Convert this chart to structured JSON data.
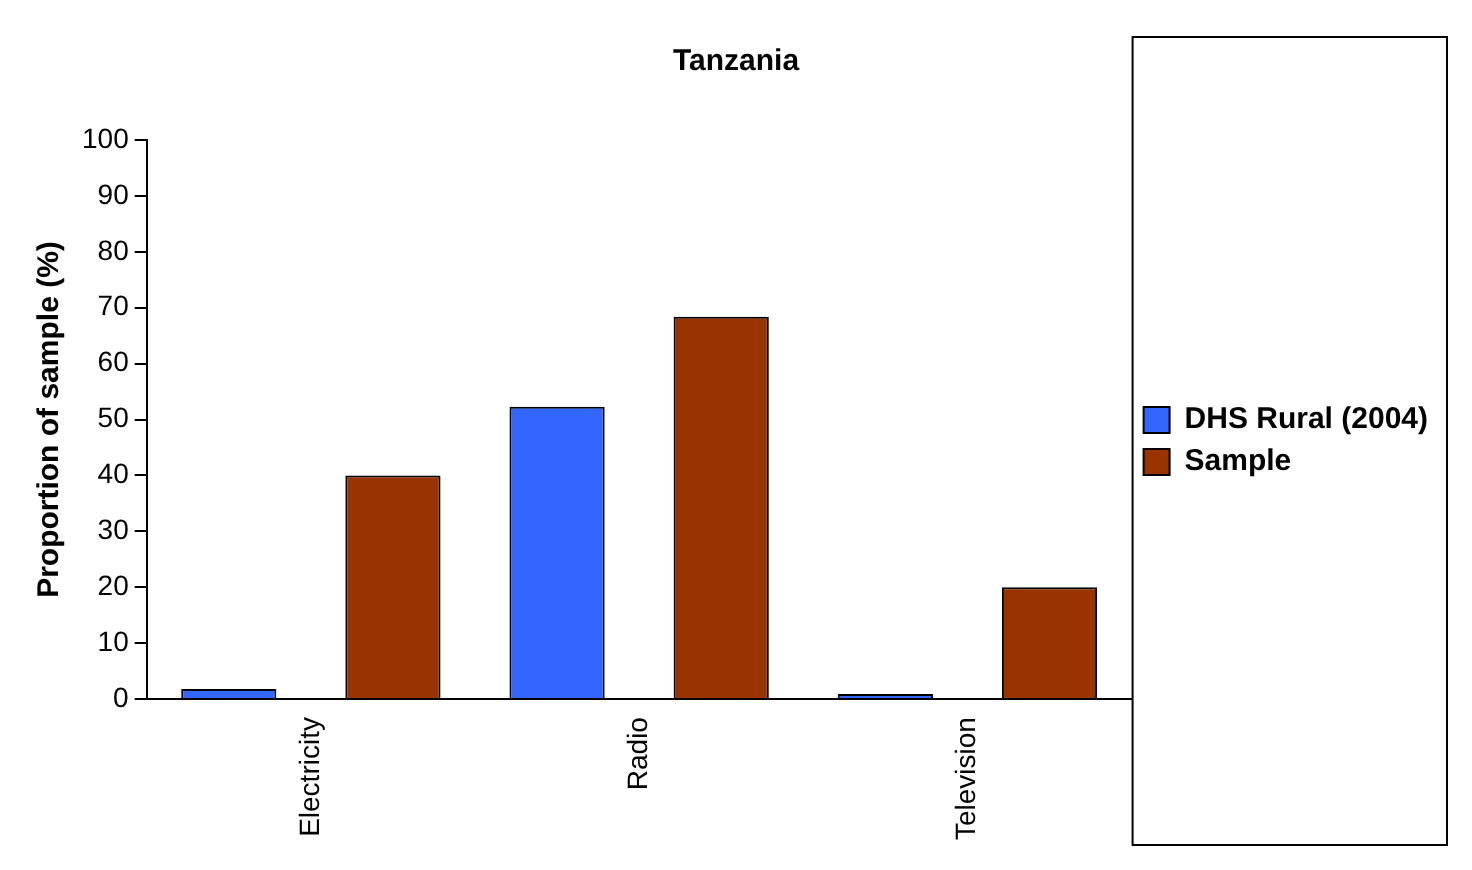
{
  "chart_data": {
    "type": "bar",
    "title": "Tanzania",
    "ylabel": "Proportion of sample (%)",
    "categories": [
      "Electricity",
      "Radio",
      "Television"
    ],
    "series": [
      {
        "name": "DHS Rural (2004)",
        "color": "#3366ff",
        "values": [
          1.8,
          52.3,
          0.9
        ]
      },
      {
        "name": "Sample",
        "color": "#993300",
        "values": [
          40,
          68.4,
          20
        ]
      }
    ],
    "ylim": [
      0,
      100
    ],
    "yticks": [
      0,
      10,
      20,
      30,
      40,
      50,
      60,
      70,
      80,
      90,
      100
    ],
    "grid": false,
    "legend": "right"
  }
}
